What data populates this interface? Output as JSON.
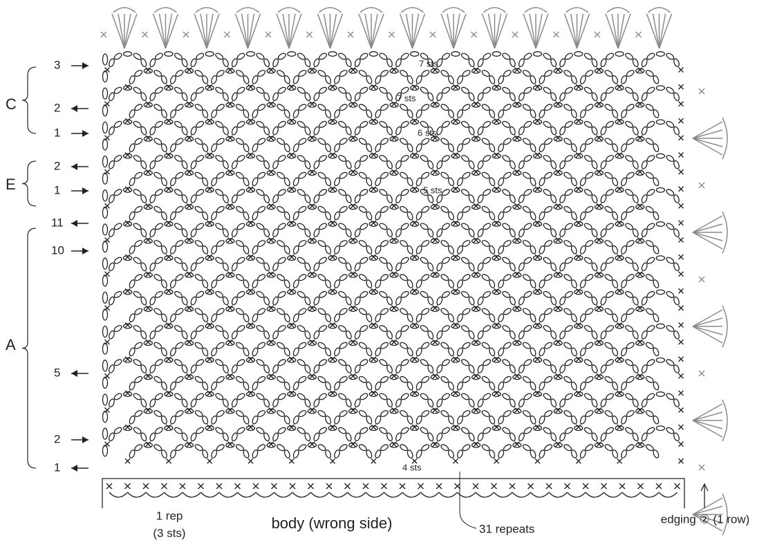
{
  "sections": [
    {
      "letter": "C",
      "rows": [
        "3",
        "2",
        "1"
      ]
    },
    {
      "letter": "E",
      "rows": [
        "2",
        "1"
      ]
    },
    {
      "letter": "A",
      "rows": [
        "11",
        "10",
        "5",
        "2",
        "1"
      ]
    }
  ],
  "stitch_counts": [
    "7 sts",
    "7 sts",
    "6 sts",
    "5 sts",
    "4 sts"
  ],
  "repeat_label": "1 rep",
  "repeat_stitches": "(3 sts)",
  "body_label": "body (wrong side)",
  "repeats_label": "31 repeats",
  "edging_label": "edging ② (1 row)"
}
